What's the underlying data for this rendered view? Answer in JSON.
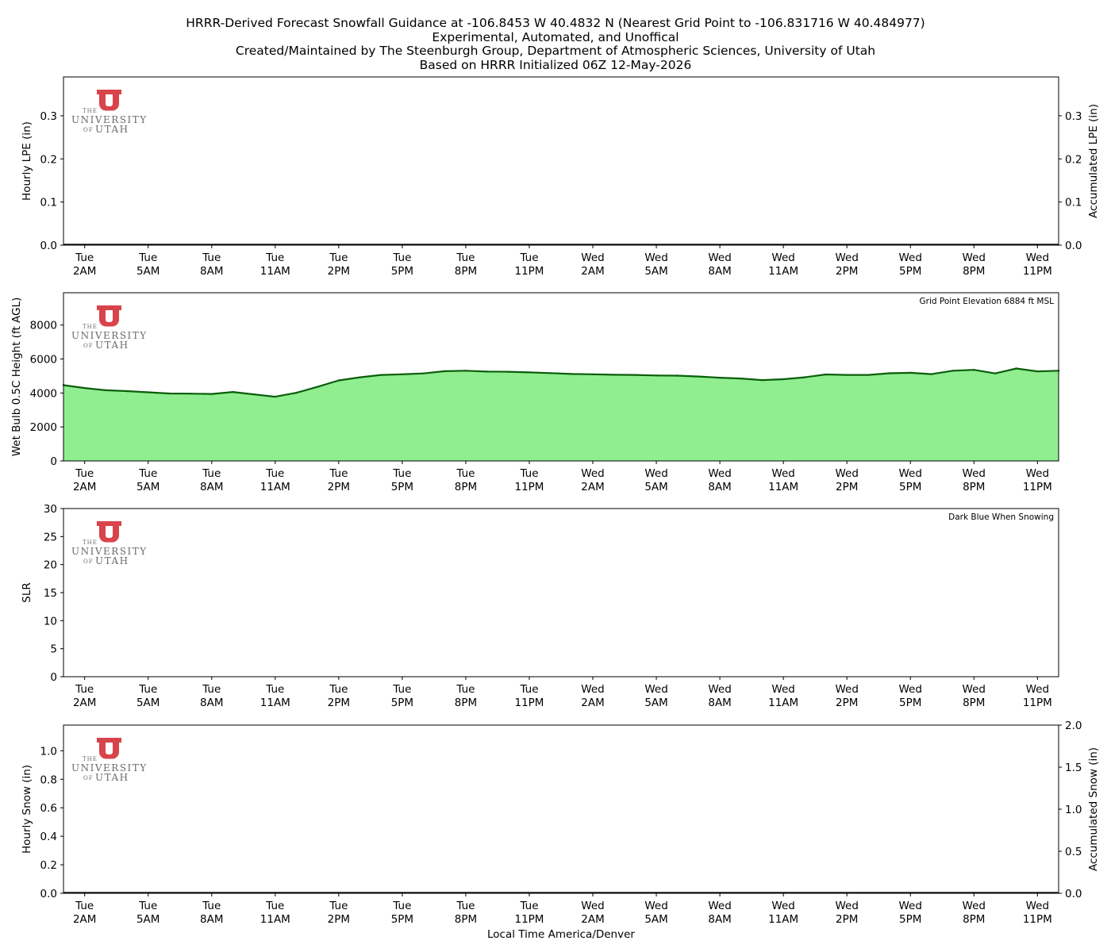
{
  "titles": [
    "HRRR-Derived Forecast Snowfall Guidance at -106.8453 W 40.4832 N (Nearest Grid Point to -106.831716 W 40.484977)",
    "Experimental, Automated, and Unoffical",
    "Created/Maintained by The Steenburgh Group, Department of Atmospheric Sciences, University of Utah",
    "Based on HRRR Initialized 06Z 12-May-2026"
  ],
  "logo": {
    "small_top": "THE",
    "big": "UNIVERSITY",
    "small_bottom": "OF",
    "big_bottom": "UTAH",
    "color": "#d9434b"
  },
  "x_axis": {
    "xlabel": "Local Time America/Denver",
    "hour_range": [
      1,
      48
    ],
    "ticks": [
      {
        "hour": 2,
        "day": "Tue",
        "time": "2AM"
      },
      {
        "hour": 5,
        "day": "Tue",
        "time": "5AM"
      },
      {
        "hour": 8,
        "day": "Tue",
        "time": "8AM"
      },
      {
        "hour": 11,
        "day": "Tue",
        "time": "11AM"
      },
      {
        "hour": 14,
        "day": "Tue",
        "time": "2PM"
      },
      {
        "hour": 17,
        "day": "Tue",
        "time": "5PM"
      },
      {
        "hour": 20,
        "day": "Tue",
        "time": "8PM"
      },
      {
        "hour": 23,
        "day": "Tue",
        "time": "11PM"
      },
      {
        "hour": 26,
        "day": "Wed",
        "time": "2AM"
      },
      {
        "hour": 29,
        "day": "Wed",
        "time": "5AM"
      },
      {
        "hour": 32,
        "day": "Wed",
        "time": "8AM"
      },
      {
        "hour": 35,
        "day": "Wed",
        "time": "11AM"
      },
      {
        "hour": 38,
        "day": "Wed",
        "time": "2PM"
      },
      {
        "hour": 41,
        "day": "Wed",
        "time": "5PM"
      },
      {
        "hour": 44,
        "day": "Wed",
        "time": "8PM"
      },
      {
        "hour": 47,
        "day": "Wed",
        "time": "11PM"
      }
    ]
  },
  "chart_data": [
    {
      "id": "lpe",
      "type": "bar",
      "ylabel": "Hourly LPE (in)",
      "ylim": [
        0,
        0.39
      ],
      "yticks": [
        "0.0",
        "0.1",
        "0.2",
        "0.3"
      ],
      "ytick_values": [
        0,
        0.1,
        0.2,
        0.3
      ],
      "y2label": "Accumulated LPE (in)",
      "y2lim": [
        0,
        0.39
      ],
      "y2ticks": [
        "0.0",
        "0.1",
        "0.2",
        "0.3"
      ],
      "y2tick_values": [
        0,
        0.1,
        0.2,
        0.3
      ],
      "series": [
        {
          "values": []
        }
      ]
    },
    {
      "id": "wetbulb",
      "type": "area",
      "ylabel": "Wet Bulb 0.5C Height (ft AGL)",
      "ylim": [
        0,
        9900
      ],
      "yticks": [
        "0",
        "2000",
        "4000",
        "6000",
        "8000"
      ],
      "ytick_values": [
        0,
        2000,
        4000,
        6000,
        8000
      ],
      "annotation": "Grid Point Elevation 6884 ft MSL",
      "fill_color": "#90ee90",
      "line_color": "#0b5e0b",
      "x": [
        1,
        2,
        3,
        4,
        5,
        6,
        7,
        8,
        9,
        10,
        11,
        12,
        13,
        14,
        15,
        16,
        17,
        18,
        19,
        20,
        21,
        22,
        23,
        24,
        25,
        26,
        27,
        28,
        29,
        30,
        31,
        32,
        33,
        34,
        35,
        36,
        37,
        38,
        39,
        40,
        41,
        42,
        43,
        44,
        45,
        46,
        47,
        48
      ],
      "values": [
        4460,
        4290,
        4160,
        4110,
        4040,
        3970,
        3960,
        3940,
        4060,
        3920,
        3780,
        4010,
        4360,
        4740,
        4920,
        5060,
        5100,
        5150,
        5280,
        5310,
        5260,
        5250,
        5210,
        5170,
        5120,
        5100,
        5070,
        5060,
        5030,
        5020,
        4970,
        4900,
        4850,
        4760,
        4810,
        4920,
        5090,
        5060,
        5060,
        5160,
        5190,
        5110,
        5310,
        5360,
        5150,
        5440,
        5270,
        5310
      ]
    },
    {
      "id": "slr",
      "type": "bar",
      "ylabel": "SLR",
      "ylim": [
        0,
        30
      ],
      "yticks": [
        "0",
        "5",
        "10",
        "15",
        "20",
        "25",
        "30"
      ],
      "ytick_values": [
        0,
        5,
        10,
        15,
        20,
        25,
        30
      ],
      "annotation": "Dark Blue When Snowing",
      "series": [
        {
          "values": []
        }
      ]
    },
    {
      "id": "snow",
      "type": "bar",
      "ylabel": "Hourly Snow (in)",
      "ylim": [
        0,
        1.18
      ],
      "yticks": [
        "0.0",
        "0.2",
        "0.4",
        "0.6",
        "0.8",
        "1.0"
      ],
      "ytick_values": [
        0,
        0.2,
        0.4,
        0.6,
        0.8,
        1.0
      ],
      "y2label": "Accumulated Snow (in)",
      "y2lim": [
        0,
        2.0
      ],
      "y2ticks": [
        "0.0",
        "0.5",
        "1.0",
        "1.5",
        "2.0"
      ],
      "y2tick_values": [
        0,
        0.5,
        1.0,
        1.5,
        2.0
      ],
      "series": [
        {
          "values": []
        }
      ]
    }
  ]
}
